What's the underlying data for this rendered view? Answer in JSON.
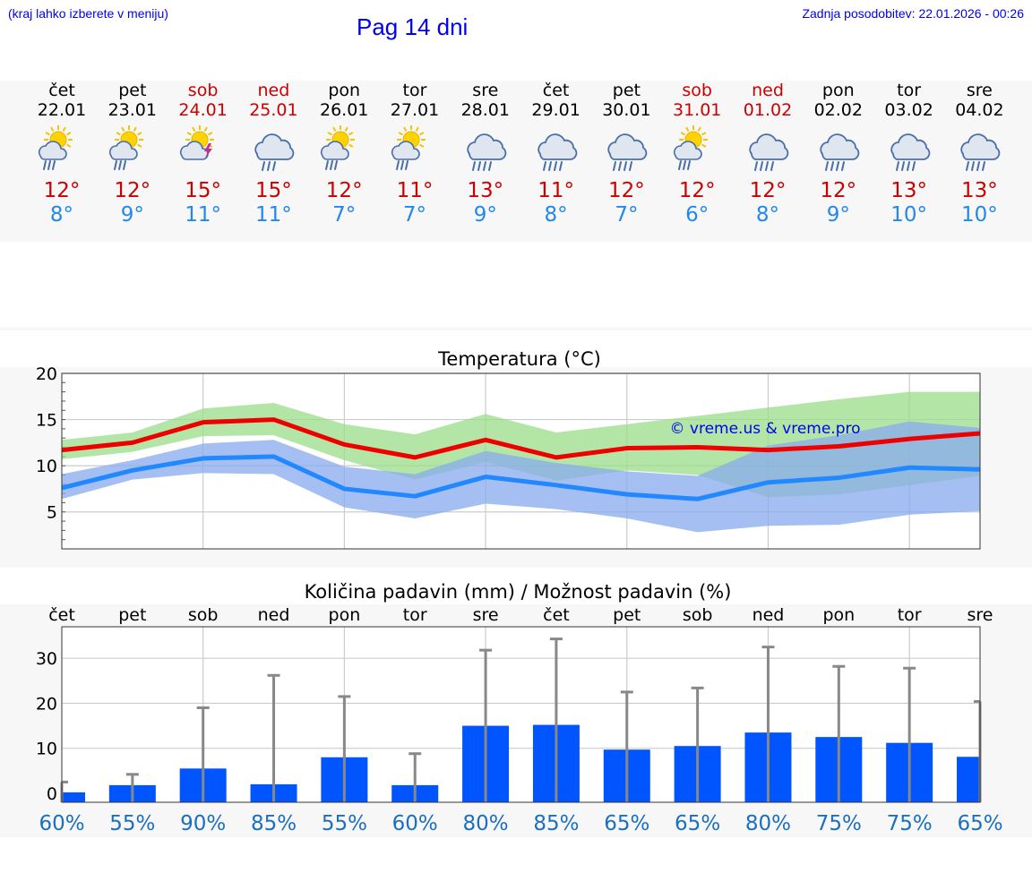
{
  "header": {
    "hint": "(kraj lahko izberete v meniju)",
    "title": "Pag 14 dni",
    "updated": "Zadnja posodobitev: 22.01.2026 - 00:26"
  },
  "colors": {
    "weekend": "#cc0000",
    "tmax": "#cc0000",
    "tmin": "#2288ee",
    "bar": "#0055ff",
    "link": "#0000ee"
  },
  "days": [
    {
      "name": "čet",
      "date": "22.01",
      "weekend": false,
      "icon": "sun-cloud-rain-icon",
      "tmax": "12°",
      "tmin": "8°"
    },
    {
      "name": "pet",
      "date": "23.01",
      "weekend": false,
      "icon": "sun-cloud-rain-icon",
      "tmax": "12°",
      "tmin": "9°"
    },
    {
      "name": "sob",
      "date": "24.01",
      "weekend": true,
      "icon": "sun-thunder-icon",
      "tmax": "15°",
      "tmin": "11°"
    },
    {
      "name": "ned",
      "date": "25.01",
      "weekend": true,
      "icon": "cloud-rain-icon",
      "tmax": "15°",
      "tmin": "11°"
    },
    {
      "name": "pon",
      "date": "26.01",
      "weekend": false,
      "icon": "sun-cloud-rain-icon",
      "tmax": "12°",
      "tmin": "7°"
    },
    {
      "name": "tor",
      "date": "27.01",
      "weekend": false,
      "icon": "sun-cloud-rain-icon",
      "tmax": "11°",
      "tmin": "7°"
    },
    {
      "name": "sre",
      "date": "28.01",
      "weekend": false,
      "icon": "cloud-heavy-rain-icon",
      "tmax": "13°",
      "tmin": "9°"
    },
    {
      "name": "čet",
      "date": "29.01",
      "weekend": false,
      "icon": "cloud-heavy-rain-icon",
      "tmax": "11°",
      "tmin": "8°"
    },
    {
      "name": "pet",
      "date": "30.01",
      "weekend": false,
      "icon": "cloud-heavy-rain-icon",
      "tmax": "12°",
      "tmin": "7°"
    },
    {
      "name": "sob",
      "date": "31.01",
      "weekend": true,
      "icon": "sun-cloud-heavy-rain-icon",
      "tmax": "12°",
      "tmin": "6°"
    },
    {
      "name": "ned",
      "date": "01.02",
      "weekend": true,
      "icon": "cloud-heavy-rain-icon",
      "tmax": "12°",
      "tmin": "8°"
    },
    {
      "name": "pon",
      "date": "02.02",
      "weekend": false,
      "icon": "cloud-heavy-rain-icon",
      "tmax": "12°",
      "tmin": "9°"
    },
    {
      "name": "tor",
      "date": "03.02",
      "weekend": false,
      "icon": "cloud-heavy-rain-icon",
      "tmax": "13°",
      "tmin": "10°"
    },
    {
      "name": "sre",
      "date": "04.02",
      "weekend": false,
      "icon": "cloud-heavy-rain-icon",
      "tmax": "13°",
      "tmin": "10°"
    }
  ],
  "chart_data": [
    {
      "type": "line",
      "title": "Temperatura (°C)",
      "watermark": "© vreme.us & vreme.pro",
      "x": [
        0,
        1,
        2,
        3,
        4,
        5,
        6,
        7,
        8,
        9,
        10,
        11,
        12,
        13
      ],
      "ylim": [
        1,
        20
      ],
      "yticks": [
        5,
        10,
        15,
        20
      ],
      "grid": true,
      "series": [
        {
          "name": "max",
          "color": "#ee0000",
          "values": [
            11.7,
            12.5,
            14.7,
            15.0,
            12.3,
            10.9,
            12.8,
            10.9,
            11.9,
            12.0,
            11.7,
            12.1,
            12.9,
            13.5
          ]
        },
        {
          "name": "min",
          "color": "#2288ff",
          "values": [
            7.6,
            9.5,
            10.8,
            11.0,
            7.5,
            6.7,
            8.8,
            7.9,
            6.9,
            6.4,
            8.2,
            8.7,
            9.8,
            9.6
          ]
        }
      ],
      "bands": [
        {
          "name": "max-range",
          "color": "#99dd88",
          "upper": [
            12.8,
            13.6,
            16.2,
            16.8,
            14.5,
            13.4,
            15.6,
            13.6,
            14.5,
            15.4,
            16.3,
            17.2,
            18.0,
            18.0
          ],
          "lower": [
            10.7,
            11.5,
            13.2,
            13.3,
            10.6,
            8.5,
            10.4,
            8.4,
            9.5,
            9.0,
            6.6,
            6.9,
            7.9,
            8.9
          ]
        },
        {
          "name": "min-range",
          "color": "#88aaee",
          "upper": [
            9.1,
            10.6,
            12.4,
            12.8,
            9.9,
            9.1,
            11.6,
            10.3,
            9.4,
            8.9,
            12.2,
            13.3,
            14.8,
            14.1
          ],
          "lower": [
            6.4,
            8.5,
            9.2,
            9.1,
            5.5,
            4.3,
            5.9,
            5.3,
            4.3,
            2.8,
            3.5,
            3.6,
            4.7,
            5.1
          ]
        }
      ]
    },
    {
      "type": "bar",
      "title": "Količina padavin (mm) / Možnost padavin (%)",
      "categories": [
        "čet",
        "pet",
        "sob",
        "ned",
        "pon",
        "tor",
        "sre",
        "čet",
        "pet",
        "sob",
        "ned",
        "pon",
        "tor",
        "sre"
      ],
      "values": [
        0.2,
        1.8,
        5.5,
        2.0,
        8.0,
        1.8,
        15.0,
        15.2,
        9.7,
        10.5,
        13.5,
        12.5,
        11.2,
        8.1
      ],
      "error_max": [
        2.5,
        4.2,
        19.0,
        26.2,
        21.5,
        8.8,
        31.8,
        34.3,
        22.5,
        23.4,
        32.5,
        28.2,
        27.8,
        20.4
      ],
      "ylim": [
        -2,
        37
      ],
      "yticks": [
        0,
        10,
        20,
        30
      ],
      "chance": [
        "60%",
        "55%",
        "90%",
        "85%",
        "55%",
        "60%",
        "80%",
        "85%",
        "65%",
        "65%",
        "80%",
        "75%",
        "75%",
        "65%"
      ],
      "ylabel_mm": "mm"
    }
  ]
}
